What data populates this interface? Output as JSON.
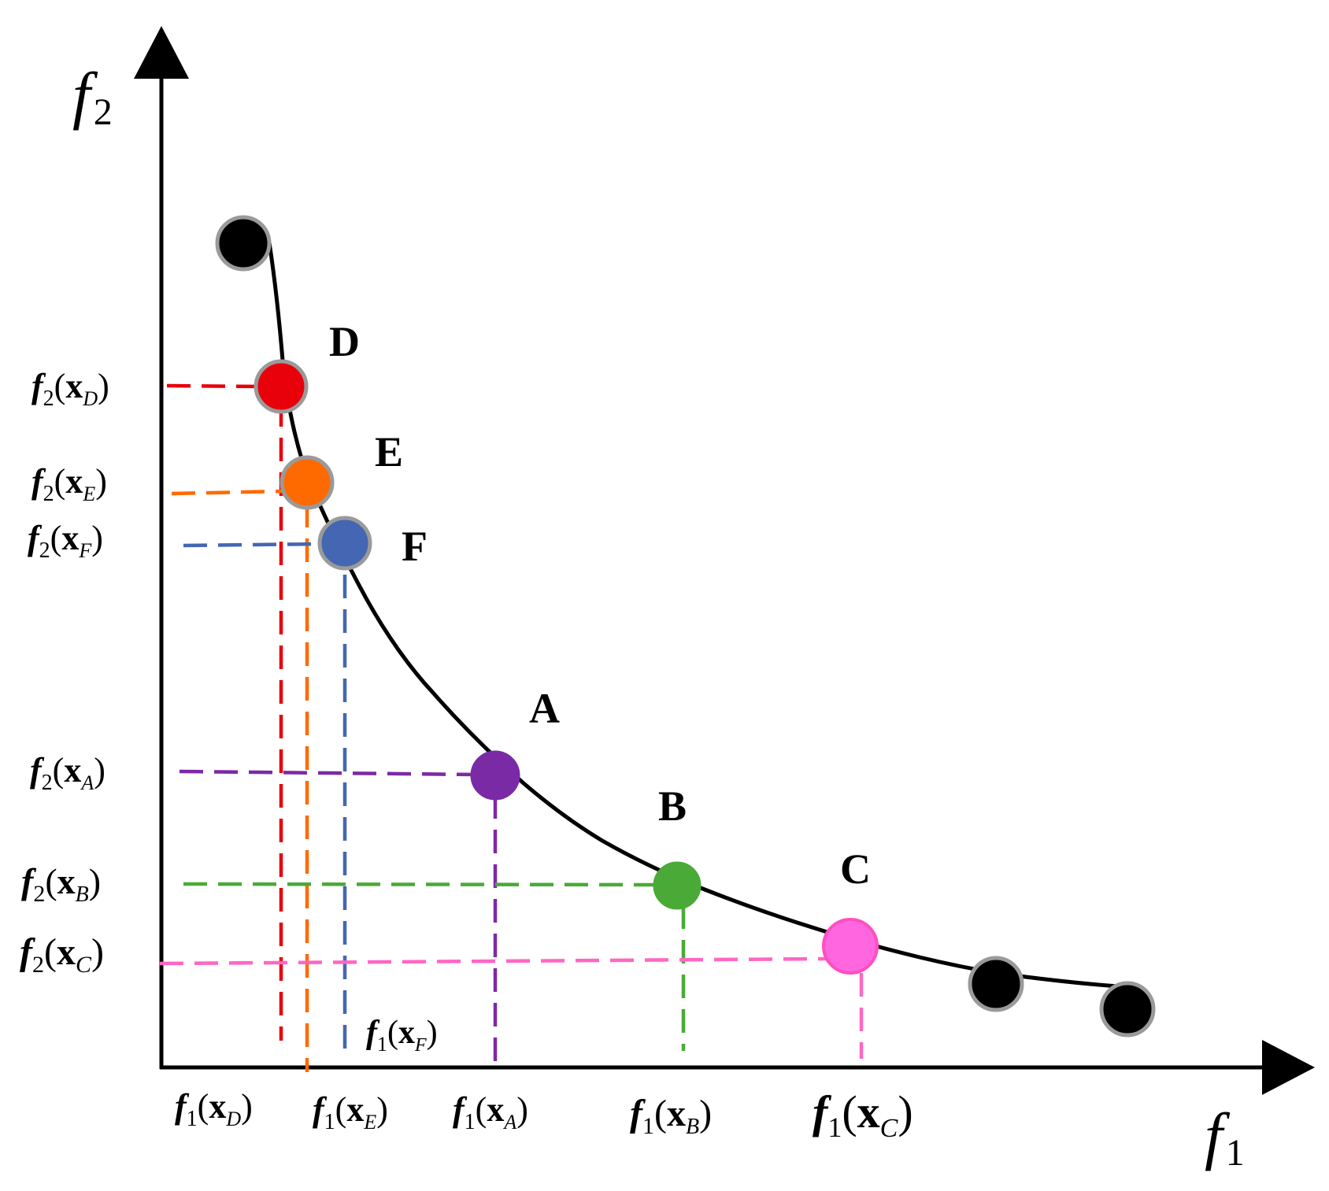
{
  "axes": {
    "x_label": {
      "f": "f",
      "sub": "1"
    },
    "y_label": {
      "f": "f",
      "sub": "2"
    }
  },
  "points": [
    {
      "id": "D",
      "color": "#e8000b",
      "stroke": "#9a9a9a",
      "f1_label": {
        "f": "f",
        "fsub": "1",
        "x": "x",
        "xsub": "D"
      },
      "f2_label": {
        "f": "f",
        "fsub": "2",
        "x": "x",
        "xsub": "D"
      }
    },
    {
      "id": "E",
      "color": "#ff6a00",
      "stroke": "#9a9a9a",
      "f1_label": {
        "f": "f",
        "fsub": "1",
        "x": "x",
        "xsub": "E"
      },
      "f2_label": {
        "f": "f",
        "fsub": "2",
        "x": "x",
        "xsub": "E"
      }
    },
    {
      "id": "F",
      "color": "#4466b3",
      "stroke": "#9a9a9a",
      "f1_label": {
        "f": "f",
        "fsub": "1",
        "x": "x",
        "xsub": "F"
      },
      "f2_label": {
        "f": "f",
        "fsub": "2",
        "x": "x",
        "xsub": "F"
      }
    },
    {
      "id": "A",
      "color": "#7b2aa6",
      "stroke": "none",
      "f1_label": {
        "f": "f",
        "fsub": "1",
        "x": "x",
        "xsub": "A"
      },
      "f2_label": {
        "f": "f",
        "fsub": "2",
        "x": "x",
        "xsub": "A"
      }
    },
    {
      "id": "B",
      "color": "#4aaa38",
      "stroke": "none",
      "f1_label": {
        "f": "f",
        "fsub": "1",
        "x": "x",
        "xsub": "B"
      },
      "f2_label": {
        "f": "f",
        "fsub": "2",
        "x": "x",
        "xsub": "B"
      }
    },
    {
      "id": "C",
      "color": "#ff66e0",
      "stroke": "#ff4fc0",
      "f1_label": {
        "f": "f",
        "fsub": "1",
        "x": "x",
        "xsub": "C"
      },
      "f2_label": {
        "f": "f",
        "fsub": "2",
        "x": "x",
        "xsub": "C"
      }
    }
  ],
  "dash_colors": {
    "D": "#e8000b",
    "E": "#ff6a00",
    "F": "#4466b3",
    "A": "#7b2aa6",
    "B": "#4aaa38",
    "C": "#ff66c4"
  },
  "other_point_color": "#000000",
  "curve_color": "#000000"
}
